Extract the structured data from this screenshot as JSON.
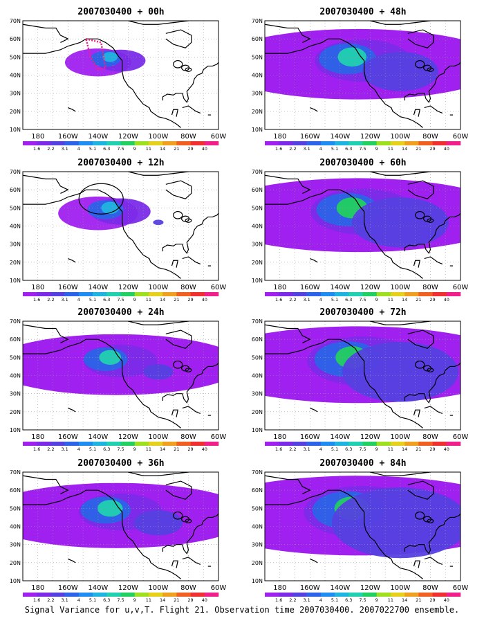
{
  "caption": "Signal Variance for u,v,T. Flight 21. Observation time 2007030400. 2007022700 ensemble.",
  "lat_labels": [
    "70N",
    "60N",
    "50N",
    "40N",
    "30N",
    "20N",
    "10N"
  ],
  "lon_labels": [
    "180",
    "160W",
    "140W",
    "120W",
    "100W",
    "80W",
    "60W"
  ],
  "colorbar": {
    "labels": [
      "1.6",
      "2.2",
      "3.1",
      "4",
      "5.1",
      "6.3",
      "7.5",
      "9",
      "11",
      "14",
      "21",
      "29",
      "40"
    ],
    "colors": [
      "#a020f0",
      "#7b2be8",
      "#5540e0",
      "#2c63e8",
      "#1e8cf0",
      "#1fb4e0",
      "#20d0b0",
      "#22d060",
      "#9ee020",
      "#e6d01e",
      "#f0a020",
      "#f06020",
      "#f03030",
      "#f0208a"
    ]
  },
  "panels": [
    {
      "title": "2007030400 + 00h",
      "level": 0.0
    },
    {
      "title": "2007030400 + 48h",
      "level": 0.68
    },
    {
      "title": "2007030400 + 12h",
      "level": 0.15
    },
    {
      "title": "2007030400 + 60h",
      "level": 0.8
    },
    {
      "title": "2007030400 + 24h",
      "level": 0.35
    },
    {
      "title": "2007030400 + 72h",
      "level": 0.9
    },
    {
      "title": "2007030400 + 36h",
      "level": 0.5
    },
    {
      "title": "2007030400 + 84h",
      "level": 1.0
    }
  ]
}
